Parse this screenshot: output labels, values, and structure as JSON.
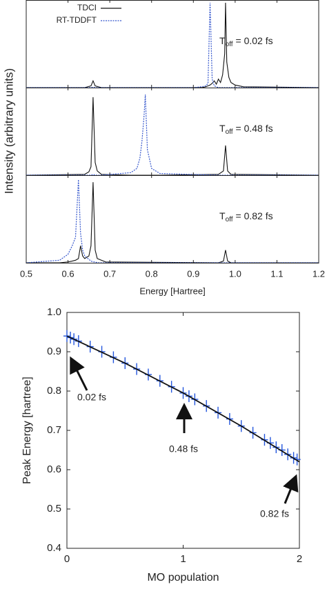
{
  "chart_data": [
    {
      "type": "line",
      "ylabel": "Intensity (arbitrary units)",
      "legend": "top-left",
      "annotation": {
        "symbol": "T",
        "subscript": "off",
        "text": "= 0.02 fs"
      },
      "xlim": [
        0.5,
        1.2
      ],
      "ylim": [
        0,
        1
      ],
      "xticks": [
        0.5,
        0.6,
        0.7,
        0.8,
        0.9,
        {
          "value": 1,
          "label": "1.0"
        },
        1.1,
        1.2
      ],
      "x": [
        0.5,
        0.64,
        0.655,
        0.66,
        0.665,
        0.68,
        0.9,
        0.92,
        0.93,
        0.935,
        0.94,
        0.945,
        0.95,
        0.955,
        0.96,
        0.965,
        0.97,
        0.975,
        0.977,
        0.98,
        0.985,
        0.99,
        1.0,
        1.02,
        1.2
      ],
      "series": [
        {
          "name": "TDCI",
          "color": "#111111",
          "dash": false,
          "values": [
            0,
            0,
            0.02,
            0.08,
            0.02,
            0,
            0,
            0,
            0.01,
            0.02,
            0.03,
            0.05,
            0.08,
            0.04,
            0.1,
            0.06,
            0.15,
            0.4,
            1.0,
            0.3,
            0.12,
            0.06,
            0.03,
            0.01,
            0
          ]
        },
        {
          "name": "RT-TDDFT",
          "color": "#3355cc",
          "dash": true,
          "values": [
            0,
            0,
            0,
            0.005,
            0,
            0,
            0,
            0.01,
            0.02,
            0.05,
            1.0,
            0.1,
            0.02,
            0.01,
            0,
            0,
            0,
            0,
            0,
            0,
            0,
            0,
            0,
            0,
            0
          ]
        }
      ]
    },
    {
      "type": "line",
      "annotation": {
        "symbol": "T",
        "subscript": "off",
        "text": "= 0.48 fs"
      },
      "xlim": [
        0.5,
        1.2
      ],
      "ylim": [
        0,
        1
      ],
      "xticks": [
        0.5,
        0.6,
        0.7,
        0.8,
        0.9,
        {
          "value": 1,
          "label": "1.0"
        },
        1.1,
        1.2
      ],
      "x": [
        0.5,
        0.64,
        0.65,
        0.655,
        0.66,
        0.665,
        0.67,
        0.68,
        0.75,
        0.765,
        0.772,
        0.777,
        0.782,
        0.785,
        0.79,
        0.8,
        0.82,
        0.96,
        0.972,
        0.977,
        0.982,
        0.99,
        1.2
      ],
      "series": [
        {
          "name": "TDCI",
          "color": "#111111",
          "dash": false,
          "values": [
            0,
            0.01,
            0.04,
            0.1,
            0.92,
            0.15,
            0.05,
            0.01,
            0,
            0,
            0,
            0,
            0,
            0,
            0,
            0,
            0,
            0.01,
            0.05,
            0.35,
            0.05,
            0.01,
            0
          ]
        },
        {
          "name": "RT-TDDFT",
          "color": "#3355cc",
          "dash": true,
          "values": [
            0,
            0,
            0,
            0,
            0.01,
            0,
            0,
            0,
            0.03,
            0.08,
            0.2,
            0.4,
            0.7,
            0.95,
            0.3,
            0.08,
            0.02,
            0,
            0,
            0,
            0,
            0,
            0
          ]
        }
      ]
    },
    {
      "type": "line",
      "xlabel": "Energy [Hartree]",
      "annotation": {
        "symbol": "T",
        "subscript": "off",
        "text": "= 0.82 fs"
      },
      "xlim": [
        0.5,
        1.2
      ],
      "ylim": [
        0,
        1
      ],
      "xticks": [
        0.5,
        0.6,
        0.7,
        0.8,
        0.9,
        {
          "value": 1,
          "label": "1.0"
        },
        1.1,
        1.2
      ],
      "x": [
        0.5,
        0.58,
        0.6,
        0.61,
        0.618,
        0.625,
        0.63,
        0.635,
        0.64,
        0.65,
        0.655,
        0.66,
        0.665,
        0.67,
        0.69,
        0.96,
        0.972,
        0.977,
        0.982,
        0.99,
        1.2
      ],
      "series": [
        {
          "name": "TDCI",
          "color": "#111111",
          "dash": false,
          "values": [
            0,
            0,
            0.01,
            0.02,
            0.03,
            0.05,
            0.2,
            0.08,
            0.05,
            0.08,
            0.2,
            0.95,
            0.15,
            0.05,
            0.01,
            0,
            0.02,
            0.15,
            0.02,
            0,
            0
          ]
        },
        {
          "name": "RT-TDDFT",
          "color": "#3355cc",
          "dash": true,
          "values": [
            0,
            0.03,
            0.1,
            0.2,
            0.3,
            0.98,
            0.35,
            0.15,
            0.08,
            0.04,
            0.02,
            0.01,
            0.01,
            0,
            0,
            0,
            0,
            0,
            0,
            0,
            0
          ]
        }
      ]
    },
    {
      "type": "scatter",
      "xlabel": "MO population",
      "ylabel": "Peak Energy [hartree]",
      "xlim": [
        0,
        2
      ],
      "ylim": [
        0.4,
        1
      ],
      "xticks": [
        0,
        1,
        2
      ],
      "yticks": [
        0.4,
        0.5,
        0.6,
        0.7,
        0.8,
        0.9,
        {
          "value": 1,
          "label": "1.0"
        }
      ],
      "annotations": [
        "0.02 fs",
        "0.48 fs",
        "0.82 fs"
      ],
      "x": [
        0.0,
        0.03,
        0.06,
        0.1,
        0.2,
        0.3,
        0.4,
        0.5,
        0.6,
        0.7,
        0.8,
        0.9,
        1.0,
        1.05,
        1.1,
        1.2,
        1.3,
        1.4,
        1.5,
        1.6,
        1.7,
        1.75,
        1.8,
        1.85,
        1.9,
        1.95,
        1.98
      ],
      "values": [
        0.94,
        0.936,
        0.932,
        0.927,
        0.913,
        0.9,
        0.886,
        0.871,
        0.856,
        0.842,
        0.826,
        0.811,
        0.795,
        0.787,
        0.779,
        0.762,
        0.745,
        0.729,
        0.711,
        0.694,
        0.676,
        0.668,
        0.657,
        0.65,
        0.639,
        0.63,
        0.626
      ],
      "yerr": 0.015,
      "xerr": 0.03,
      "color": "#2255dd",
      "fit": {
        "color": "#111111",
        "x": [
          0,
          0.5,
          1,
          1.5,
          2
        ],
        "values": [
          0.94,
          0.871,
          0.795,
          0.711,
          0.62
        ]
      }
    }
  ]
}
